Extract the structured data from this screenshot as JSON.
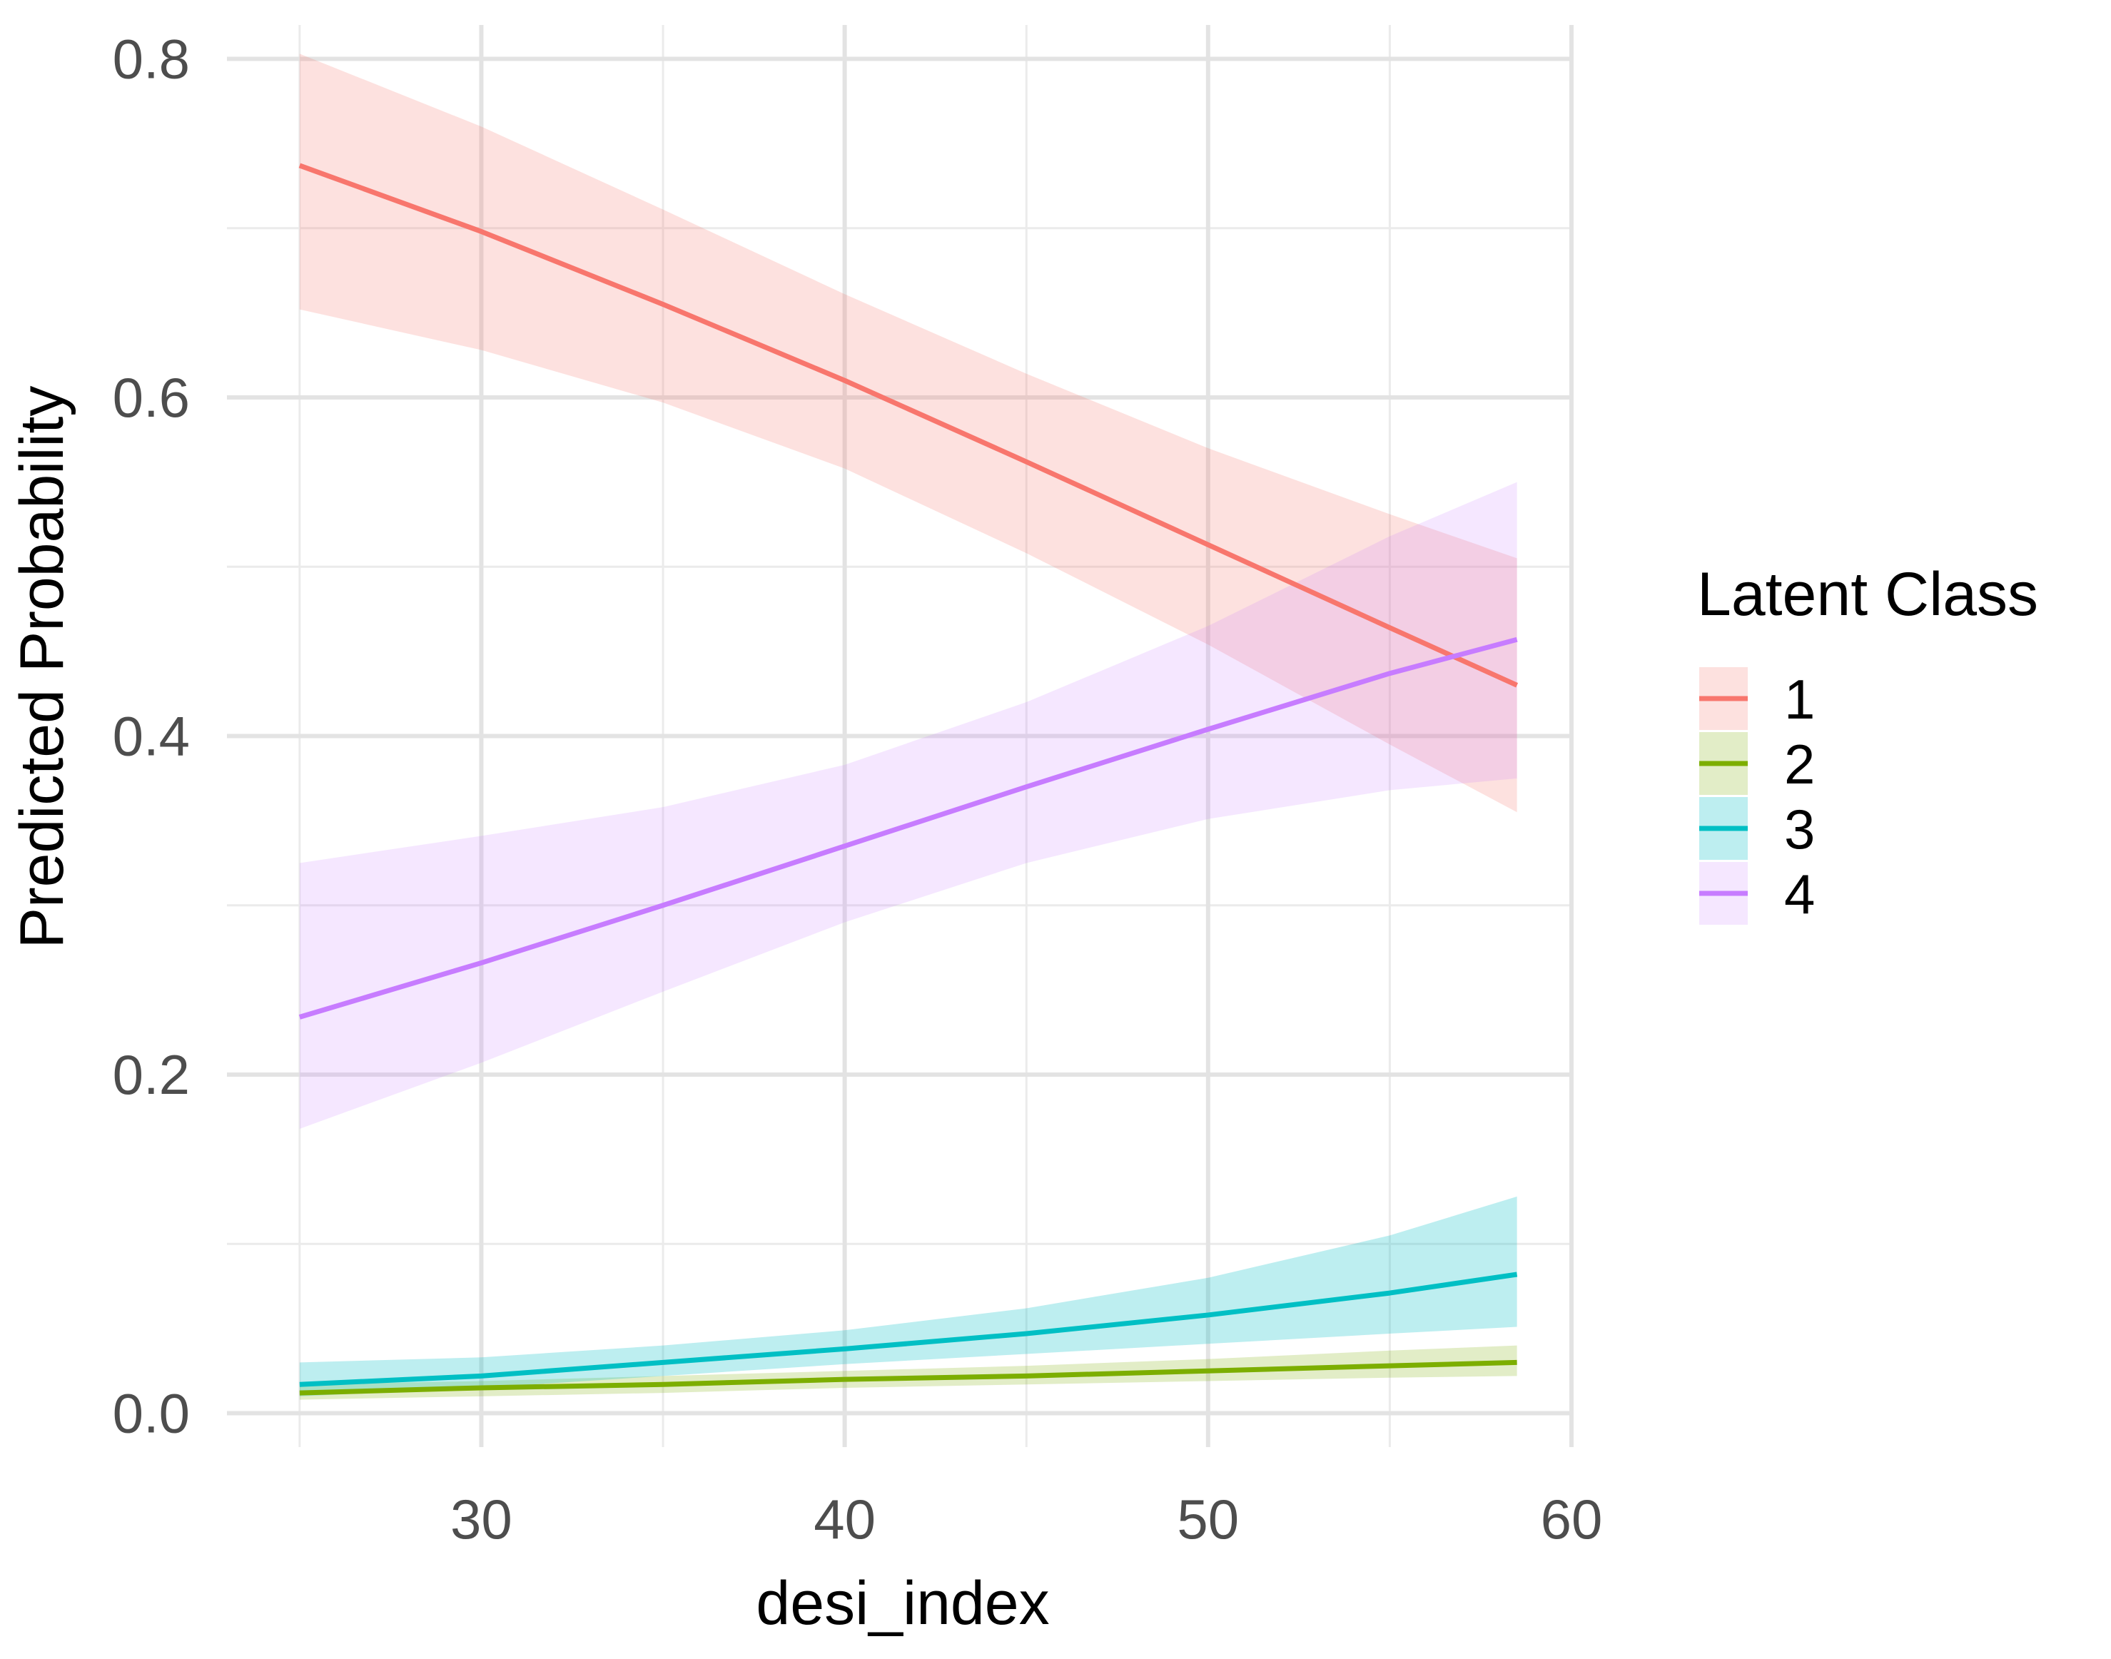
{
  "chart_data": {
    "type": "line",
    "xlabel": "desi_index",
    "ylabel": "Predicted Probability",
    "xlim": [
      23,
      60
    ],
    "ylim": [
      -0.02,
      0.82
    ],
    "x_ticks": [
      30,
      40,
      50,
      60
    ],
    "x_tick_labels": [
      "30",
      "40",
      "50",
      "60"
    ],
    "x_minor_ticks": [
      25,
      35,
      45,
      55
    ],
    "y_ticks": [
      0.0,
      0.2,
      0.4,
      0.6,
      0.8
    ],
    "y_tick_labels": [
      "0.0",
      "0.2",
      "0.4",
      "0.6",
      "0.8"
    ],
    "y_minor_ticks": [
      0.1,
      0.3,
      0.5,
      0.7
    ],
    "grid": true,
    "legend": {
      "title": "Latent Class",
      "position": "right"
    },
    "series": [
      {
        "name": "1",
        "color": "#F8766D",
        "x": [
          25,
          30,
          35,
          40,
          45,
          50,
          55,
          58.5
        ],
        "y": [
          0.737,
          0.698,
          0.655,
          0.61,
          0.562,
          0.513,
          0.464,
          0.43
        ],
        "lower": [
          0.652,
          0.628,
          0.597,
          0.558,
          0.508,
          0.454,
          0.395,
          0.355
        ],
        "upper": [
          0.803,
          0.76,
          0.711,
          0.661,
          0.614,
          0.57,
          0.531,
          0.505
        ]
      },
      {
        "name": "2",
        "color": "#7CAE00",
        "x": [
          25,
          30,
          35,
          40,
          45,
          50,
          55,
          58.5
        ],
        "y": [
          0.012,
          0.015,
          0.017,
          0.02,
          0.022,
          0.025,
          0.028,
          0.03
        ],
        "lower": [
          0.008,
          0.01,
          0.012,
          0.015,
          0.017,
          0.019,
          0.021,
          0.022
        ],
        "upper": [
          0.017,
          0.019,
          0.022,
          0.025,
          0.028,
          0.032,
          0.037,
          0.04
        ]
      },
      {
        "name": "3",
        "color": "#00BFC4",
        "x": [
          25,
          30,
          35,
          40,
          45,
          50,
          55,
          58.5
        ],
        "y": [
          0.017,
          0.022,
          0.03,
          0.038,
          0.047,
          0.058,
          0.071,
          0.082
        ],
        "lower": [
          0.01,
          0.015,
          0.022,
          0.029,
          0.035,
          0.041,
          0.047,
          0.051
        ],
        "upper": [
          0.03,
          0.033,
          0.04,
          0.049,
          0.062,
          0.08,
          0.105,
          0.128
        ]
      },
      {
        "name": "4",
        "color": "#C77CFF",
        "x": [
          25,
          30,
          35,
          40,
          45,
          50,
          55,
          58.5
        ],
        "y": [
          0.234,
          0.266,
          0.3,
          0.335,
          0.37,
          0.404,
          0.437,
          0.457
        ],
        "lower": [
          0.168,
          0.207,
          0.249,
          0.29,
          0.325,
          0.351,
          0.368,
          0.375
        ],
        "upper": [
          0.325,
          0.341,
          0.358,
          0.383,
          0.42,
          0.465,
          0.518,
          0.55
        ]
      }
    ]
  }
}
